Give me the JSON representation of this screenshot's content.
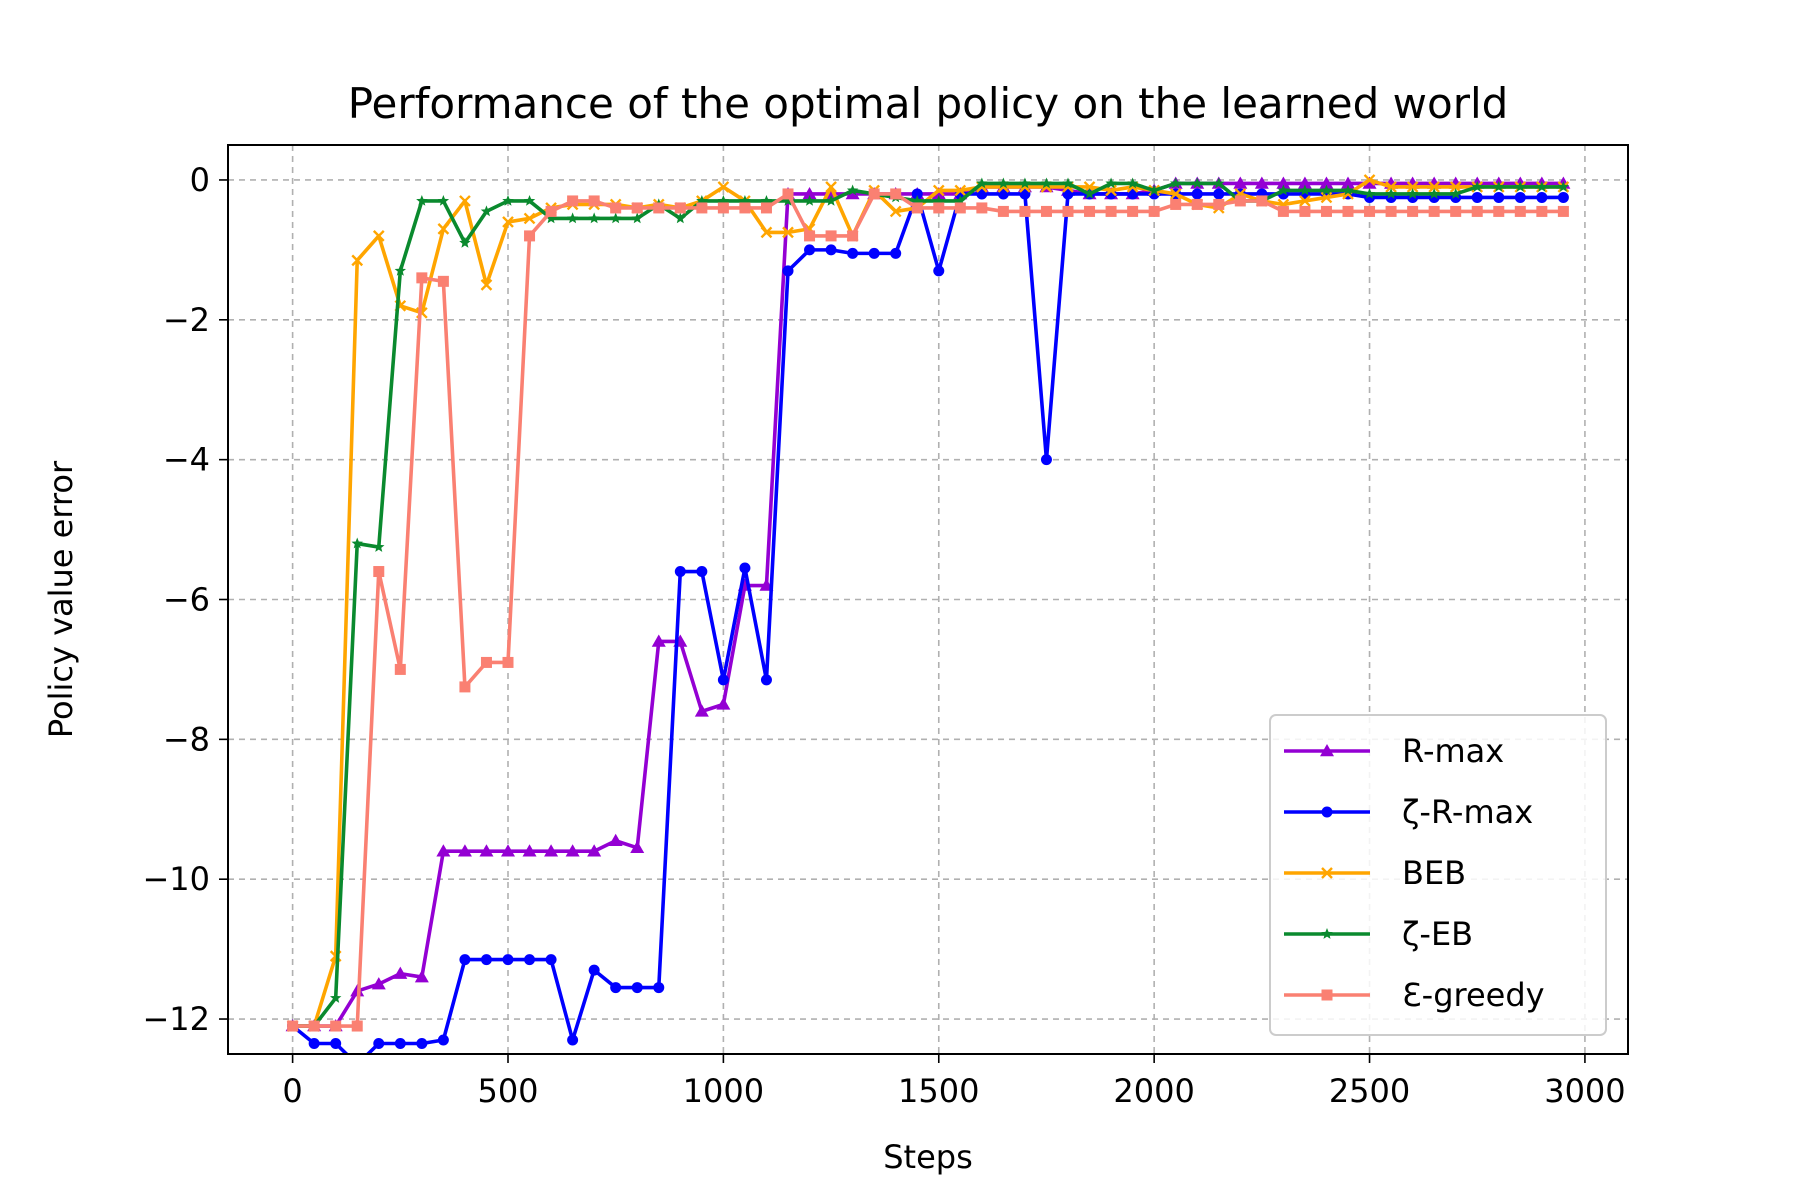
{
  "chart_data": {
    "type": "line",
    "title": "Performance of the optimal policy on the learned world",
    "xlabel": "Steps",
    "ylabel": "Policy value error",
    "xlim": [
      -150,
      3100
    ],
    "ylim": [
      -12.5,
      0.5
    ],
    "xticks": [
      0,
      500,
      1000,
      1500,
      2000,
      2500,
      3000
    ],
    "yticks": [
      0,
      -2,
      -4,
      -6,
      -8,
      -10,
      -12
    ],
    "ytick_labels": [
      "0",
      "−2",
      "−4",
      "−6",
      "−8",
      "−10",
      "−12"
    ],
    "grid": true,
    "legend_position": "lower-right",
    "x": [
      0,
      50,
      100,
      150,
      200,
      250,
      300,
      350,
      400,
      450,
      500,
      550,
      600,
      650,
      700,
      750,
      800,
      850,
      900,
      950,
      1000,
      1050,
      1100,
      1150,
      1200,
      1250,
      1300,
      1350,
      1400,
      1450,
      1500,
      1550,
      1600,
      1650,
      1700,
      1750,
      1800,
      1850,
      1900,
      1950,
      2000,
      2050,
      2100,
      2150,
      2200,
      2250,
      2300,
      2350,
      2400,
      2450,
      2500,
      2550,
      2600,
      2650,
      2700,
      2750,
      2800,
      2850,
      2900,
      2950
    ],
    "series": [
      {
        "name": "R-max",
        "color": "#9400D3",
        "marker": "triangle",
        "values": [
          -12.1,
          -12.1,
          -12.1,
          -11.6,
          -11.5,
          -11.35,
          -11.4,
          -9.6,
          -9.6,
          -9.6,
          -9.6,
          -9.6,
          -9.6,
          -9.6,
          -9.6,
          -9.45,
          -9.55,
          -6.6,
          -6.6,
          -7.6,
          -7.5,
          -5.8,
          -5.8,
          -0.2,
          -0.2,
          -0.2,
          -0.2,
          -0.2,
          -0.2,
          -0.2,
          -0.2,
          -0.2,
          -0.1,
          -0.1,
          -0.1,
          -0.1,
          -0.15,
          -0.2,
          -0.2,
          -0.2,
          -0.15,
          -0.05,
          -0.05,
          -0.05,
          -0.05,
          -0.05,
          -0.05,
          -0.05,
          -0.05,
          -0.05,
          -0.05,
          -0.05,
          -0.05,
          -0.05,
          -0.05,
          -0.05,
          -0.05,
          -0.05,
          -0.05,
          -0.05
        ]
      },
      {
        "name": "ζ-R-max",
        "color": "#0000FF",
        "marker": "circle",
        "values": [
          -12.1,
          -12.35,
          -12.35,
          -12.65,
          -12.35,
          -12.35,
          -12.35,
          -12.3,
          -11.15,
          -11.15,
          -11.15,
          -11.15,
          -11.15,
          -12.3,
          -11.3,
          -11.55,
          -11.55,
          -11.55,
          -5.6,
          -5.6,
          -7.15,
          -5.55,
          -7.15,
          -1.3,
          -1.0,
          -1.0,
          -1.05,
          -1.05,
          -1.05,
          -0.2,
          -1.3,
          -0.2,
          -0.2,
          -0.2,
          -0.2,
          -4.0,
          -0.2,
          -0.2,
          -0.2,
          -0.2,
          -0.2,
          -0.2,
          -0.2,
          -0.2,
          -0.2,
          -0.2,
          -0.2,
          -0.2,
          -0.2,
          -0.2,
          -0.25,
          -0.25,
          -0.25,
          -0.25,
          -0.25,
          -0.25,
          -0.25,
          -0.25,
          -0.25,
          -0.25
        ]
      },
      {
        "name": "BEB",
        "color": "#FFA500",
        "marker": "x",
        "values": [
          -12.1,
          -12.1,
          -11.1,
          -1.15,
          -0.8,
          -1.8,
          -1.9,
          -0.7,
          -0.3,
          -1.5,
          -0.6,
          -0.55,
          -0.4,
          -0.35,
          -0.35,
          -0.35,
          -0.4,
          -0.35,
          -0.4,
          -0.3,
          -0.1,
          -0.3,
          -0.75,
          -0.75,
          -0.7,
          -0.1,
          -0.8,
          -0.15,
          -0.45,
          -0.4,
          -0.15,
          -0.15,
          -0.1,
          -0.1,
          -0.1,
          -0.1,
          -0.1,
          -0.1,
          -0.15,
          -0.1,
          -0.15,
          -0.2,
          -0.35,
          -0.4,
          -0.2,
          -0.3,
          -0.35,
          -0.3,
          -0.25,
          -0.2,
          0.0,
          -0.1,
          -0.1,
          -0.1,
          -0.1,
          -0.1,
          -0.1,
          -0.1,
          -0.1,
          -0.1
        ]
      },
      {
        "name": "ζ-EB",
        "color": "#0A8A2E",
        "marker": "star",
        "values": [
          -12.1,
          -12.1,
          -11.7,
          -5.2,
          -5.25,
          -1.3,
          -0.3,
          -0.3,
          -0.9,
          -0.45,
          -0.3,
          -0.3,
          -0.55,
          -0.55,
          -0.55,
          -0.55,
          -0.55,
          -0.35,
          -0.55,
          -0.3,
          -0.3,
          -0.3,
          -0.3,
          -0.3,
          -0.3,
          -0.3,
          -0.15,
          -0.2,
          -0.25,
          -0.3,
          -0.3,
          -0.3,
          -0.05,
          -0.05,
          -0.05,
          -0.05,
          -0.05,
          -0.2,
          -0.05,
          -0.05,
          -0.15,
          -0.05,
          -0.05,
          -0.05,
          -0.3,
          -0.3,
          -0.15,
          -0.15,
          -0.15,
          -0.15,
          -0.2,
          -0.2,
          -0.2,
          -0.2,
          -0.2,
          -0.1,
          -0.1,
          -0.1,
          -0.1,
          -0.1
        ]
      },
      {
        "name": "Ɛ-greedy",
        "color": "#FA8072",
        "marker": "square",
        "values": [
          -12.1,
          -12.1,
          -12.1,
          -12.1,
          -5.6,
          -7.0,
          -1.4,
          -1.45,
          -7.25,
          -6.9,
          -6.9,
          -0.8,
          -0.45,
          -0.3,
          -0.3,
          -0.4,
          -0.4,
          -0.4,
          -0.4,
          -0.4,
          -0.4,
          -0.4,
          -0.4,
          -0.2,
          -0.8,
          -0.8,
          -0.8,
          -0.2,
          -0.2,
          -0.4,
          -0.4,
          -0.4,
          -0.4,
          -0.45,
          -0.45,
          -0.45,
          -0.45,
          -0.45,
          -0.45,
          -0.45,
          -0.45,
          -0.35,
          -0.35,
          -0.35,
          -0.3,
          -0.3,
          -0.45,
          -0.45,
          -0.45,
          -0.45,
          -0.45,
          -0.45,
          -0.45,
          -0.45,
          -0.45,
          -0.45,
          -0.45,
          -0.45,
          -0.45,
          -0.45
        ]
      }
    ]
  }
}
